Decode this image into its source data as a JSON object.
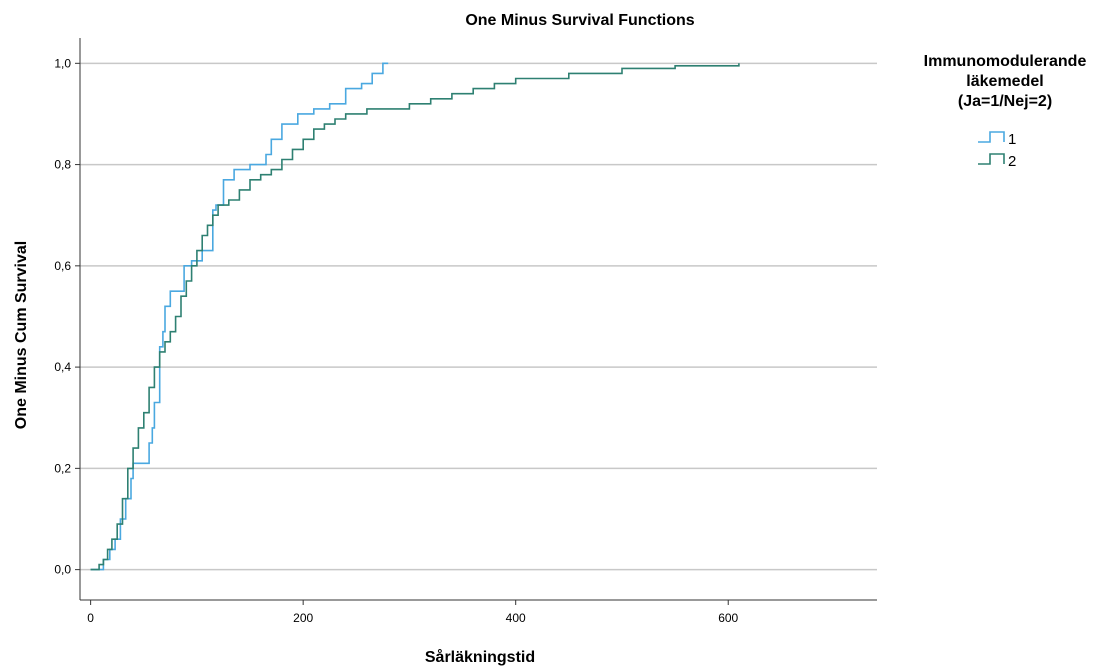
{
  "chart_data": {
    "type": "line",
    "step": true,
    "title": "One Minus Survival Functions",
    "xlabel": "Sårläkningstid",
    "ylabel": "One Minus Cum Survival",
    "xlim": [
      -10,
      740
    ],
    "ylim": [
      -0.06,
      1.05
    ],
    "xticks": [
      0,
      200,
      400,
      600
    ],
    "xtick_labels": [
      "0",
      "200",
      "400",
      "600"
    ],
    "yticks": [
      0,
      0.2,
      0.4,
      0.6,
      0.8,
      1.0
    ],
    "ytick_labels": [
      "0,0",
      "0,2",
      "0,4",
      "0,6",
      "0,8",
      "1,0"
    ],
    "grid": "horizontal",
    "legend": {
      "title_lines": [
        "Immunomodulerande",
        "läkemedel",
        "(Ja=1/Nej=2)"
      ],
      "placement": "right"
    },
    "series": [
      {
        "name": "1",
        "color": "#4aa8e0",
        "x": [
          0,
          12,
          18,
          23,
          28,
          33,
          38,
          40,
          55,
          58,
          60,
          65,
          68,
          70,
          75,
          80,
          88,
          95,
          105,
          115,
          118,
          125,
          135,
          150,
          165,
          170,
          180,
          195,
          210,
          225,
          240,
          255,
          265,
          275,
          280
        ],
        "y": [
          0.0,
          0.02,
          0.04,
          0.06,
          0.1,
          0.14,
          0.18,
          0.21,
          0.25,
          0.28,
          0.33,
          0.44,
          0.47,
          0.52,
          0.55,
          0.55,
          0.6,
          0.61,
          0.63,
          0.71,
          0.72,
          0.77,
          0.79,
          0.8,
          0.82,
          0.85,
          0.88,
          0.9,
          0.91,
          0.92,
          0.95,
          0.96,
          0.98,
          1.0,
          1.0
        ]
      },
      {
        "name": "2",
        "color": "#2e8072",
        "x": [
          0,
          8,
          12,
          16,
          20,
          25,
          30,
          35,
          40,
          45,
          50,
          55,
          60,
          65,
          70,
          75,
          80,
          85,
          90,
          95,
          100,
          105,
          110,
          115,
          120,
          130,
          140,
          150,
          160,
          170,
          180,
          190,
          200,
          210,
          220,
          230,
          240,
          260,
          280,
          300,
          320,
          340,
          360,
          380,
          400,
          450,
          500,
          550,
          610
        ],
        "y": [
          0.0,
          0.01,
          0.02,
          0.04,
          0.06,
          0.09,
          0.14,
          0.2,
          0.24,
          0.28,
          0.31,
          0.36,
          0.4,
          0.43,
          0.45,
          0.47,
          0.5,
          0.54,
          0.57,
          0.6,
          0.63,
          0.66,
          0.68,
          0.7,
          0.72,
          0.73,
          0.75,
          0.77,
          0.78,
          0.79,
          0.81,
          0.83,
          0.85,
          0.87,
          0.88,
          0.89,
          0.9,
          0.91,
          0.91,
          0.92,
          0.93,
          0.94,
          0.95,
          0.96,
          0.97,
          0.98,
          0.99,
          0.995,
          1.0
        ]
      }
    ]
  }
}
